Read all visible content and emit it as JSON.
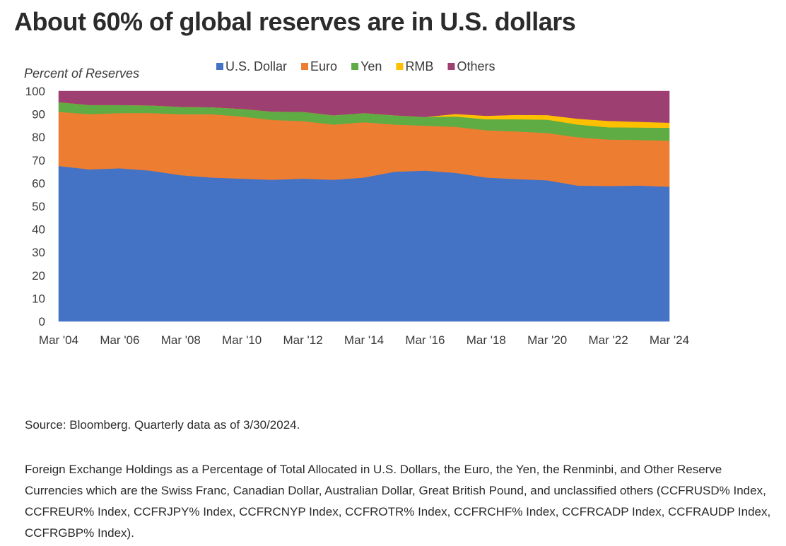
{
  "page": {
    "title": "About 60% of global reserves are in U.S. dollars",
    "source": "Source: Bloomberg. Quarterly data as of 3/30/2024.",
    "note": "Foreign Exchange Holdings as a Percentage of Total Allocated in U.S. Dollars, the Euro, the Yen, the Renminbi, and Other Reserve Currencies which are the Swiss Franc, Canadian Dollar, Australian Dollar, Great British Pound, and unclassified others (CCFRUSD% Index, CCFREUR% Index, CCFRJPY% Index, CCFRCNYP Index, CCFROTR% Index, CCFRCHF% Index, CCFRCADP Index, CCFRAUDP Index, CCFRGBP% Index)."
  },
  "chart_data": {
    "type": "area",
    "stacked": true,
    "title": "About 60% of global reserves are in U.S. dollars",
    "ylabel": "Percent of Reserves",
    "xlabel": "",
    "ylim": [
      0,
      100
    ],
    "yticks": [
      "0",
      "10",
      "20",
      "30",
      "40",
      "50",
      "60",
      "70",
      "80",
      "90",
      "100"
    ],
    "xticks": [
      "Mar '04",
      "Mar '06",
      "Mar '08",
      "Mar '10",
      "Mar '12",
      "Mar '14",
      "Mar '16",
      "Mar '18",
      "Mar '20",
      "Mar '22",
      "Mar '24"
    ],
    "legend_position": "top",
    "grid": false,
    "x": [
      "Mar '04",
      "Mar '05",
      "Mar '06",
      "Mar '07",
      "Mar '08",
      "Mar '09",
      "Mar '10",
      "Mar '11",
      "Mar '12",
      "Mar '13",
      "Mar '14",
      "Mar '15",
      "Mar '16",
      "Mar '17",
      "Mar '18",
      "Mar '19",
      "Mar '20",
      "Mar '21",
      "Mar '22",
      "Mar '23",
      "Mar '24"
    ],
    "series": [
      {
        "name": "U.S. Dollar",
        "color": "#4472c4",
        "values": [
          67.5,
          66.0,
          66.5,
          65.5,
          63.5,
          62.5,
          62.0,
          61.5,
          62.0,
          61.5,
          62.5,
          65.0,
          65.5,
          64.5,
          62.5,
          61.8,
          61.3,
          59.0,
          58.8,
          59.0,
          58.5
        ]
      },
      {
        "name": "Euro",
        "color": "#ed7d31",
        "values": [
          23.5,
          24.0,
          24.0,
          25.0,
          26.5,
          27.5,
          27.0,
          26.0,
          25.0,
          24.0,
          24.0,
          20.5,
          19.5,
          20.0,
          20.5,
          20.7,
          20.5,
          21.0,
          20.2,
          19.8,
          20.0
        ]
      },
      {
        "name": "Yen",
        "color": "#5fac45",
        "values": [
          4.2,
          4.0,
          3.5,
          3.3,
          3.2,
          3.0,
          3.3,
          3.6,
          4.0,
          4.0,
          4.0,
          4.0,
          3.8,
          4.5,
          4.8,
          5.3,
          5.8,
          5.5,
          5.3,
          5.4,
          5.6
        ]
      },
      {
        "name": "RMB",
        "color": "#ffc000",
        "values": [
          0,
          0,
          0,
          0,
          0,
          0,
          0,
          0,
          0,
          0,
          0,
          0,
          0,
          1.1,
          1.5,
          1.9,
          2.0,
          2.5,
          2.8,
          2.5,
          2.2
        ]
      },
      {
        "name": "Others",
        "color": "#9e3f72",
        "values": [
          4.8,
          6.0,
          6.0,
          6.2,
          6.8,
          7.0,
          7.7,
          8.9,
          9.0,
          10.5,
          9.5,
          10.5,
          11.2,
          9.9,
          10.7,
          10.3,
          10.4,
          12.0,
          12.9,
          13.3,
          13.7
        ]
      }
    ]
  }
}
